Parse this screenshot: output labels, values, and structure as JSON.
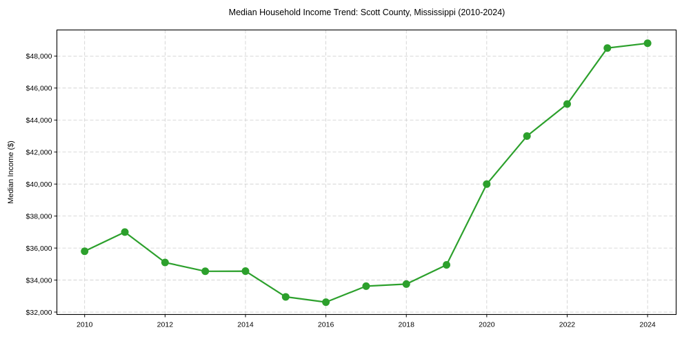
{
  "chart_data": {
    "type": "line",
    "title": "Median Household Income Trend: Scott County, Mississippi (2010-2024)",
    "xlabel": "",
    "ylabel": "Median Income ($)",
    "x": [
      2010,
      2011,
      2012,
      2013,
      2014,
      2015,
      2016,
      2017,
      2018,
      2019,
      2020,
      2021,
      2022,
      2023,
      2024
    ],
    "series": [
      {
        "name": "Median Household Income",
        "color": "#2ca02c",
        "marker": "circle",
        "values": [
          35800,
          37000,
          35100,
          34550,
          34560,
          32950,
          32620,
          33620,
          33750,
          34950,
          40000,
          43000,
          45000,
          48500,
          48800
        ]
      }
    ],
    "xticks": [
      2010,
      2012,
      2014,
      2016,
      2018,
      2020,
      2022,
      2024
    ],
    "xtick_labels": [
      "2010",
      "2012",
      "2014",
      "2016",
      "2018",
      "2020",
      "2022",
      "2024"
    ],
    "yticks": [
      32000,
      34000,
      36000,
      38000,
      40000,
      42000,
      44000,
      46000,
      48000
    ],
    "ytick_labels": [
      "$32,000",
      "$34,000",
      "$36,000",
      "$38,000",
      "$40,000",
      "$42,000",
      "$44,000",
      "$46,000",
      "$48,000"
    ],
    "xlim": [
      2009.31,
      2024.71
    ],
    "ylim": [
      31850,
      49630
    ],
    "grid": true,
    "grid_style": "dashed",
    "legend": null
  }
}
